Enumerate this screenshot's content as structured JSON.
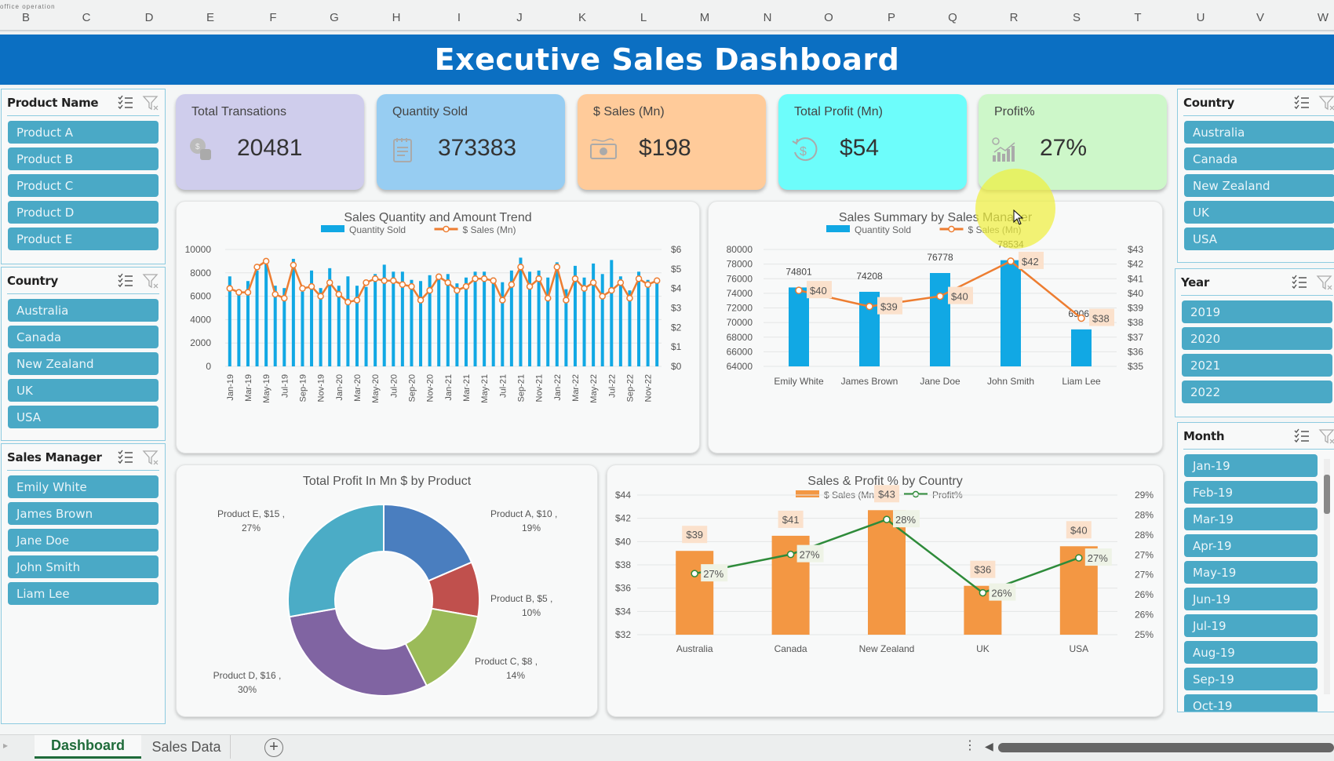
{
  "app": {
    "name_box": "office operation",
    "columns": [
      "B",
      "C",
      "D",
      "E",
      "F",
      "G",
      "H",
      "I",
      "J",
      "K",
      "L",
      "M",
      "N",
      "O",
      "P",
      "Q",
      "R",
      "S",
      "T",
      "U",
      "V",
      "W"
    ],
    "sheet_tabs": [
      {
        "label": "Dashboard",
        "active": true
      },
      {
        "label": "Sales Data",
        "active": false
      }
    ],
    "add_sheet_icon": "plus-circle-icon"
  },
  "header": {
    "title": "Executive Sales Dashboard",
    "color": "#0b6fc2"
  },
  "kpis": [
    {
      "label": "Total Transations",
      "value": "20481",
      "icon": "coins-icon",
      "color": "#cfcdec"
    },
    {
      "label": "Quantity Sold",
      "value": "373383",
      "icon": "notepad-icon",
      "color": "#97cdf2"
    },
    {
      "label": "$ Sales (Mn)",
      "value": "$198",
      "icon": "cash-icon",
      "color": "#ffcb9a"
    },
    {
      "label": "Total Profit (Mn)",
      "value": "$54",
      "icon": "dollar-cycle-icon",
      "color": "#6dfdfb"
    },
    {
      "label": "Profit%",
      "value": "27%",
      "icon": "growth-chart-icon",
      "color": "#cdf7c9"
    }
  ],
  "slicers": {
    "product": {
      "title": "Product Name",
      "items": [
        "Product A",
        "Product B",
        "Product C",
        "Product D",
        "Product E"
      ]
    },
    "country_left": {
      "title": "Country",
      "items": [
        "Australia",
        "Canada",
        "New Zealand",
        "UK",
        "USA"
      ]
    },
    "manager": {
      "title": "Sales Manager",
      "items": [
        "Emily White",
        "James Brown",
        "Jane Doe",
        "John Smith",
        "Liam Lee"
      ]
    },
    "country_right": {
      "title": "Country",
      "items": [
        "Australia",
        "Canada",
        "New Zealand",
        "UK",
        "USA"
      ]
    },
    "year": {
      "title": "Year",
      "items": [
        "2019",
        "2020",
        "2021",
        "2022"
      ]
    },
    "month": {
      "title": "Month",
      "items": [
        "Jan-19",
        "Feb-19",
        "Mar-19",
        "Apr-19",
        "May-19",
        "Jun-19",
        "Jul-19",
        "Aug-19",
        "Sep-19",
        "Oct-19"
      ]
    }
  },
  "chart_data": [
    {
      "id": "trend",
      "type": "bar",
      "title": "Sales Quantity and Amount Trend",
      "legend": [
        "Quantity Sold",
        "$ Sales (Mn)"
      ],
      "legend_position": "top",
      "ylim": [
        0,
        10000
      ],
      "yticks": [
        "0",
        "2000",
        "4000",
        "6000",
        "8000",
        "10000"
      ],
      "y2lim": [
        0,
        6
      ],
      "y2ticks": [
        "$0",
        "$1",
        "$2",
        "$3",
        "$4",
        "$5",
        "$6"
      ],
      "x_labels_shown": [
        "Jan-19",
        "Mar-19",
        "May-19",
        "Jul-19",
        "Sep-19",
        "Nov-19",
        "Jan-20",
        "Mar-20",
        "May-20",
        "Jul-20",
        "Sep-20",
        "Nov-20",
        "Jan-21",
        "Mar-21",
        "May-21",
        "Jul-21",
        "Sep-21",
        "Nov-21",
        "Jan-22",
        "Mar-22",
        "May-22",
        "Jul-22",
        "Sep-22",
        "Nov-22"
      ],
      "categories": [
        "Jan-19",
        "Feb-19",
        "Mar-19",
        "Apr-19",
        "May-19",
        "Jun-19",
        "Jul-19",
        "Aug-19",
        "Sep-19",
        "Oct-19",
        "Nov-19",
        "Dec-19",
        "Jan-20",
        "Feb-20",
        "Mar-20",
        "Apr-20",
        "May-20",
        "Jun-20",
        "Jul-20",
        "Aug-20",
        "Sep-20",
        "Oct-20",
        "Nov-20",
        "Dec-20",
        "Jan-21",
        "Feb-21",
        "Mar-21",
        "Apr-21",
        "May-21",
        "Jun-21",
        "Jul-21",
        "Aug-21",
        "Sep-21",
        "Oct-21",
        "Nov-21",
        "Dec-21",
        "Jan-22",
        "Feb-22",
        "Mar-22",
        "Apr-22",
        "May-22",
        "Jun-22",
        "Jul-22",
        "Aug-22",
        "Sep-22",
        "Oct-22",
        "Nov-22",
        "Dec-22"
      ],
      "series": [
        {
          "name": "Quantity Sold",
          "type": "bar",
          "color": "#11a8e4",
          "values": [
            7700,
            6200,
            7300,
            8200,
            8900,
            6900,
            6700,
            9200,
            6400,
            8200,
            6700,
            8400,
            6900,
            7700,
            6900,
            6800,
            7900,
            8700,
            8100,
            8100,
            7400,
            7300,
            7800,
            7800,
            7900,
            7100,
            7600,
            8100,
            8100,
            7600,
            7200,
            8200,
            9300,
            8100,
            8200,
            7600,
            8900,
            6600,
            8600,
            7600,
            8800,
            7900,
            9100,
            7700,
            6500,
            8100,
            7400,
            7300
          ]
        },
        {
          "name": "$ Sales (Mn)",
          "type": "line",
          "color": "#ed7d31",
          "values": [
            4.0,
            3.8,
            3.8,
            5.1,
            5.4,
            3.7,
            3.5,
            5.2,
            4.0,
            4.1,
            3.6,
            4.3,
            3.7,
            3.3,
            3.4,
            4.3,
            4.5,
            4.4,
            4.4,
            4.2,
            4.1,
            3.4,
            3.9,
            4.6,
            4.3,
            3.9,
            4.1,
            4.5,
            4.5,
            4.4,
            3.4,
            4.2,
            5.1,
            4.1,
            4.5,
            3.5,
            5.1,
            3.4,
            4.5,
            4.0,
            4.3,
            3.6,
            3.9,
            4.3,
            3.5,
            4.5,
            4.2,
            4.4
          ]
        }
      ]
    },
    {
      "id": "manager",
      "type": "bar",
      "title": "Sales Summary by Sales Manager",
      "legend": [
        "Quantity Sold",
        "$ Sales (Mn)"
      ],
      "legend_position": "top",
      "categories": [
        "Emily White",
        "James Brown",
        "Jane Doe",
        "John Smith",
        "Liam Lee"
      ],
      "ylim": [
        64000,
        80000
      ],
      "yticks": [
        "64000",
        "66000",
        "68000",
        "70000",
        "72000",
        "74000",
        "76000",
        "78000",
        "80000"
      ],
      "y2lim": [
        35,
        43
      ],
      "y2ticks": [
        "$35",
        "$36",
        "$37",
        "$38",
        "$39",
        "$40",
        "$41",
        "$42",
        "$43"
      ],
      "series": [
        {
          "name": "Quantity Sold",
          "type": "bar",
          "color": "#11a8e4",
          "values": [
            74801,
            74208,
            76778,
            78534,
            69062
          ],
          "labels": [
            "74801",
            "74208",
            "76778",
            "78534",
            "69062"
          ]
        },
        {
          "name": "$ Sales (Mn)",
          "type": "line",
          "color": "#ed7d31",
          "values": [
            40.2,
            39.1,
            39.8,
            42.2,
            38.3
          ],
          "labels": [
            "$40",
            "$39",
            "$40",
            "$42",
            "$38"
          ]
        }
      ]
    },
    {
      "id": "product",
      "type": "pie",
      "title": "Total Profit In Mn $ by Product",
      "categories": [
        "Product A",
        "Product B",
        "Product C",
        "Product D",
        "Product E"
      ],
      "values": [
        10,
        5,
        8,
        16,
        15
      ],
      "percent": [
        19,
        10,
        14,
        30,
        27
      ],
      "labels": [
        "Product A, $10 , 19%",
        "Product B, $5 , 10%",
        "Product C, $8 , 14%",
        "Product D, $16 , 30%",
        "Product E, $15 , 27%"
      ],
      "colors": [
        "#4a7ebf",
        "#c0504d",
        "#9bbb59",
        "#8064a2",
        "#4bacc6"
      ],
      "donut": true
    },
    {
      "id": "country",
      "type": "bar",
      "title": "Sales & Profit % by Country",
      "legend": [
        "$ Sales (Mn)",
        "Profit%"
      ],
      "legend_position": "top",
      "categories": [
        "Australia",
        "Canada",
        "New Zealand",
        "UK",
        "USA"
      ],
      "ylim": [
        32,
        44
      ],
      "yticks": [
        "$32",
        "$34",
        "$36",
        "$38",
        "$40",
        "$42",
        "$44"
      ],
      "y2lim": [
        25,
        29
      ],
      "y2ticks": [
        "25%",
        "26%",
        "26%",
        "27%",
        "27%",
        "28%",
        "28%",
        "29%"
      ],
      "series": [
        {
          "name": "$ Sales (Mn)",
          "type": "bar",
          "color": "#f39743",
          "values": [
            39.2,
            40.5,
            42.7,
            36.2,
            39.6
          ],
          "labels": [
            "$39",
            "$41",
            "$43",
            "$36",
            "$40"
          ]
        },
        {
          "name": "Profit%",
          "type": "line",
          "color": "#2e8b3a",
          "values": [
            26.75,
            27.3,
            28.3,
            26.2,
            27.2
          ],
          "labels": [
            "27%",
            "27%",
            "28%",
            "26%",
            "27%"
          ]
        }
      ]
    }
  ]
}
